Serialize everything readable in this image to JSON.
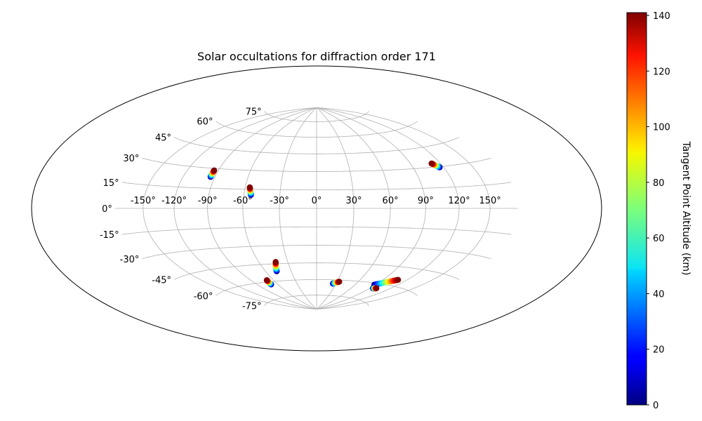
{
  "chart_data": {
    "type": "scatter",
    "title": "Solar occultations for diffraction order 171",
    "projection": "hammer",
    "grid": true,
    "lon_tick_labels": [
      "-150°",
      "-120°",
      "-90°",
      "-60°",
      "-30°",
      "0°",
      "30°",
      "60°",
      "90°",
      "120°",
      "150°"
    ],
    "lon_ticks": [
      -150,
      -120,
      -90,
      -60,
      -30,
      0,
      30,
      60,
      90,
      120,
      150
    ],
    "lat_tick_labels": [
      "-75°",
      "-60°",
      "-45°",
      "-30°",
      "-15°",
      "0°",
      "15°",
      "30°",
      "45°",
      "60°",
      "75°"
    ],
    "lat_ticks": [
      -75,
      -60,
      -45,
      -30,
      -15,
      0,
      15,
      30,
      45,
      60,
      75
    ],
    "colorbar": {
      "label": "Tangent Point Altitude (km)",
      "range": [
        0,
        141
      ],
      "colormap": "jet",
      "tick_labels": [
        "0",
        "20",
        "40",
        "60",
        "80",
        "100",
        "120",
        "140"
      ],
      "ticks": [
        0,
        20,
        40,
        60,
        80,
        100,
        120,
        140
      ]
    },
    "series": [
      {
        "lon_start": -94,
        "lat_start": 23.5,
        "lon_end": -94,
        "lat_end": 28.5,
        "alt_start": 0,
        "alt_end": 141
      },
      {
        "lon_start": -54,
        "lat_start": 10.5,
        "lon_end": -56,
        "lat_end": 16.5,
        "alt_start": 0,
        "alt_end": 141
      },
      {
        "lon_start": 116,
        "lat_start": 29.5,
        "lon_end": 111,
        "lat_end": 32.8,
        "alt_start": 0,
        "alt_end": 141
      },
      {
        "lon_start": -47,
        "lat_start": -51.5,
        "lon_end": -42.5,
        "lat_end": -43.5,
        "alt_start": 0,
        "alt_end": 141
      },
      {
        "lon_start": -70,
        "lat_start": -62.5,
        "lon_end": -69,
        "lat_end": -58.5,
        "alt_start": 0,
        "alt_end": 141
      },
      {
        "lon_start": 25,
        "lat_start": -63.5,
        "lon_end": 33,
        "lat_end": -61.5,
        "alt_start": 0,
        "alt_end": 141
      },
      {
        "lon_start": 88,
        "lat_start": -61.5,
        "lon_end": 109,
        "lat_end": -55,
        "alt_start": 0,
        "alt_end": 141
      },
      {
        "lon_start": 95,
        "lat_start": -64.5,
        "lon_end": 100,
        "lat_end": -64.0,
        "alt_start": 0,
        "alt_end": 141
      }
    ]
  }
}
